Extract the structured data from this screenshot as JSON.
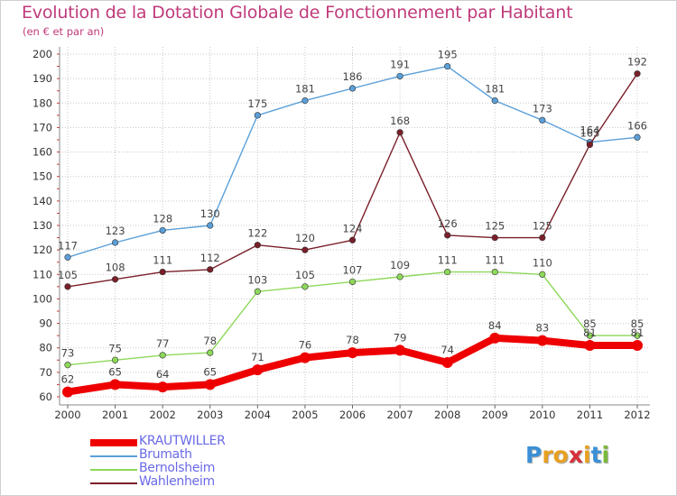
{
  "header": {
    "title": "Evolution de la Dotation Globale de Fonctionnement par Habitant",
    "subtitle": "(en € et par an)"
  },
  "logo": {
    "text": "Proxiti",
    "colors": [
      "#3a8fd6",
      "#e8a020",
      "#e8a020",
      "#d6303a",
      "#e8a020",
      "#3a8fd6",
      "#7ab83a"
    ]
  },
  "chart_data": {
    "type": "line",
    "title": "Evolution de la Dotation Globale de Fonctionnement par Habitant",
    "subtitle": "(en € et par an)",
    "x": [
      "2000",
      "2001",
      "2002",
      "2003",
      "2004",
      "2005",
      "2006",
      "2007",
      "2008",
      "2009",
      "2010",
      "2011",
      "2012"
    ],
    "ylim": [
      60,
      200
    ],
    "yticks": [
      60,
      70,
      80,
      90,
      100,
      110,
      120,
      130,
      140,
      150,
      160,
      170,
      180,
      190,
      200
    ],
    "grid": true,
    "legend": "bottom-left",
    "series": [
      {
        "name": "KRAUTWILLER",
        "color": "#ee0000",
        "values": [
          62,
          65,
          64,
          65,
          71,
          76,
          78,
          79,
          74,
          84,
          83,
          81,
          81
        ],
        "labels": [
          "62",
          "65",
          "64",
          "65",
          "71",
          "76",
          "78",
          "79",
          "74",
          "84",
          "83",
          "81",
          "81"
        ]
      },
      {
        "name": "Brumath",
        "color": "#5a9fd8",
        "values": [
          117,
          123,
          128,
          130,
          175,
          181,
          186,
          191,
          195,
          181,
          173,
          164,
          166
        ],
        "labels": [
          "117",
          "123",
          "128",
          "130",
          "175",
          "181",
          "186",
          "191",
          "195",
          "181",
          "173",
          "164",
          "166"
        ]
      },
      {
        "name": "Bernolsheim",
        "color": "#8ed85a",
        "values": [
          73,
          75,
          77,
          78,
          103,
          105,
          107,
          109,
          111,
          111,
          110,
          85,
          85
        ],
        "labels": [
          "73",
          "75",
          "77",
          "78",
          "103",
          "105",
          "107",
          "109",
          "111",
          "111",
          "110",
          "85",
          "85"
        ]
      },
      {
        "name": "Wahlenheim",
        "color": "#7a1f2a",
        "values": [
          105,
          108,
          111,
          112,
          122,
          120,
          124,
          168,
          126,
          125,
          125,
          163,
          192
        ],
        "labels": [
          "105",
          "108",
          "111",
          "112",
          "122",
          "120",
          "124",
          "168",
          "126",
          "125",
          "125",
          "163",
          "192"
        ]
      }
    ]
  }
}
